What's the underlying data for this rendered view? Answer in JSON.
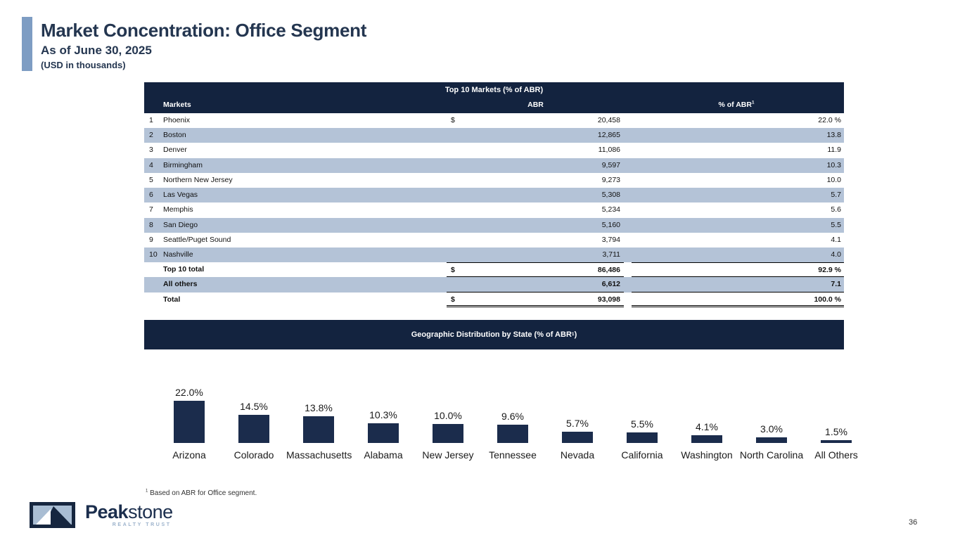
{
  "slide": {
    "title": "Market Concentration: Office Segment",
    "subtitle": "As of June 30, 2025",
    "units": "(USD in thousands)",
    "page_number": "36"
  },
  "table": {
    "title": "Top 10 Markets (% of ABR)",
    "columns": {
      "markets": "Markets",
      "abr": "ABR",
      "pct": "% of ABR",
      "pct_sup": "1"
    },
    "rows": [
      {
        "rank": "1",
        "market": "Phoenix",
        "currency": "$",
        "abr": "20,458",
        "pct": "22.0 %"
      },
      {
        "rank": "2",
        "market": "Boston",
        "currency": "",
        "abr": "12,865",
        "pct": "13.8"
      },
      {
        "rank": "3",
        "market": "Denver",
        "currency": "",
        "abr": "11,086",
        "pct": "11.9"
      },
      {
        "rank": "4",
        "market": "Birmingham",
        "currency": "",
        "abr": "9,597",
        "pct": "10.3"
      },
      {
        "rank": "5",
        "market": "Northern New Jersey",
        "currency": "",
        "abr": "9,273",
        "pct": "10.0"
      },
      {
        "rank": "6",
        "market": "Las Vegas",
        "currency": "",
        "abr": "5,308",
        "pct": "5.7"
      },
      {
        "rank": "7",
        "market": "Memphis",
        "currency": "",
        "abr": "5,234",
        "pct": "5.6"
      },
      {
        "rank": "8",
        "market": "San Diego",
        "currency": "",
        "abr": "5,160",
        "pct": "5.5"
      },
      {
        "rank": "9",
        "market": "Seattle/Puget Sound",
        "currency": "",
        "abr": "3,794",
        "pct": "4.1"
      },
      {
        "rank": "10",
        "market": "Nashville",
        "currency": "",
        "abr": "3,711",
        "pct": "4.0"
      }
    ],
    "totals": [
      {
        "label": "Top 10 total",
        "currency": "$",
        "abr": "86,486",
        "pct": "92.9 %"
      },
      {
        "label": "All others",
        "currency": "",
        "abr": "6,612",
        "pct": "7.1"
      },
      {
        "label": "Total",
        "currency": "$",
        "abr": "93,098",
        "pct": "100.0 %"
      }
    ]
  },
  "chart_band": {
    "title": "Geographic Distribution by State (% of ABR",
    "sup": "1",
    "close": ")"
  },
  "chart_data": {
    "type": "bar",
    "title": "Geographic Distribution by State (% of ABR)",
    "categories": [
      "Arizona",
      "Colorado",
      "Massachusetts",
      "Alabama",
      "New Jersey",
      "Tennessee",
      "Nevada",
      "California",
      "Washington",
      "North Carolina",
      "All Others"
    ],
    "values": [
      22.0,
      14.5,
      13.8,
      10.3,
      10.0,
      9.6,
      5.7,
      5.5,
      4.1,
      3.0,
      1.5
    ],
    "labels": [
      "22.0%",
      "14.5%",
      "13.8%",
      "10.3%",
      "10.0%",
      "9.6%",
      "5.7%",
      "5.5%",
      "4.1%",
      "3.0%",
      "1.5%"
    ],
    "ylim": [
      0,
      22
    ],
    "bar_color": "#1b2c4c",
    "grid": false,
    "legend": false
  },
  "footnote": {
    "sup": "1",
    "text": " Based on ABR for Office segment."
  },
  "logo": {
    "name_bold": "Peak",
    "name_light": "stone",
    "tagline": "REALTY TRUST"
  },
  "colors": {
    "navy": "#13233f",
    "stripe_blue": "#b4c3d7",
    "accent_blue": "#7e9dc3",
    "heading_navy": "#243650",
    "logo_light_blue": "#9db3cc"
  }
}
